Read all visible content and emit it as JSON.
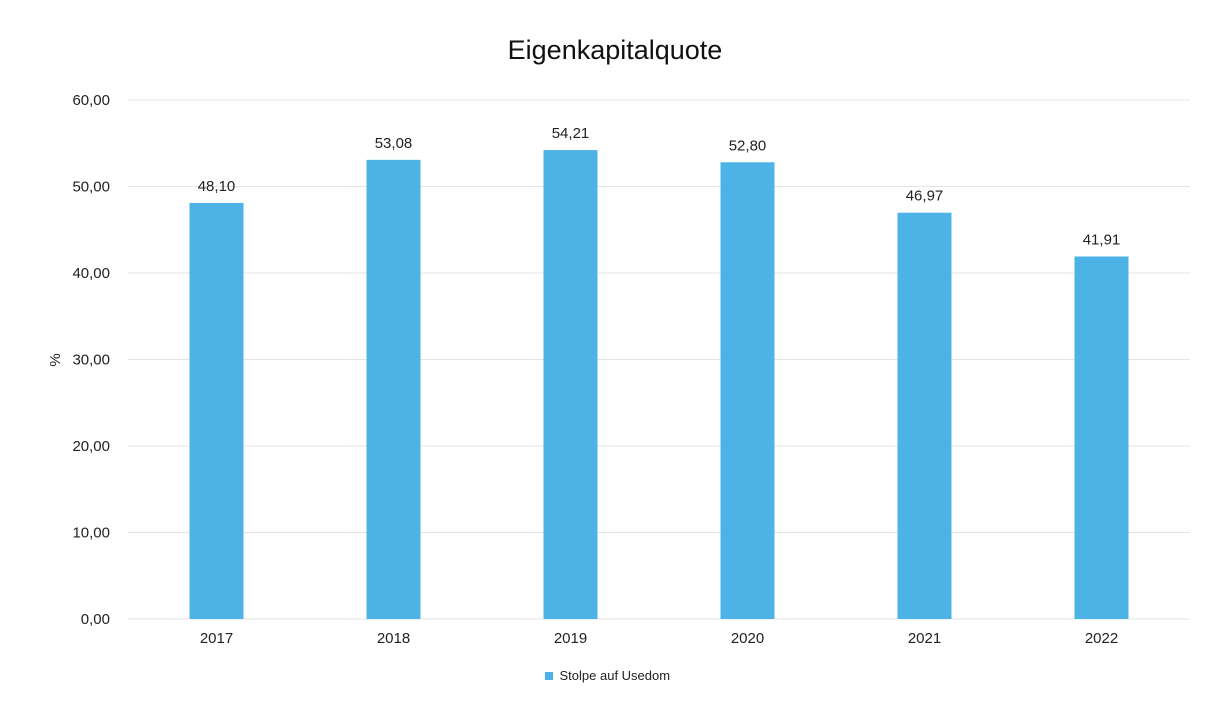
{
  "chart_data": {
    "type": "bar",
    "title": "Eigenkapitalquote",
    "xlabel": "",
    "ylabel": "%",
    "categories": [
      "2017",
      "2018",
      "2019",
      "2020",
      "2021",
      "2022"
    ],
    "series": [
      {
        "name": "Stolpe auf Usedom",
        "values": [
          48.1,
          53.08,
          54.21,
          52.8,
          46.97,
          41.91
        ]
      }
    ],
    "data_labels": [
      "48,10",
      "53,08",
      "54,21",
      "52,80",
      "46,97",
      "41,91"
    ],
    "ylim": [
      0,
      60
    ],
    "yticks": [
      0,
      10,
      20,
      30,
      40,
      50,
      60
    ],
    "ytick_labels": [
      "0,00",
      "10,00",
      "20,00",
      "30,00",
      "40,00",
      "50,00",
      "60,00"
    ],
    "grid": true,
    "legend_position": "bottom",
    "bar_color": "#4db3e6",
    "grid_color": "#e4e4e4",
    "text_color": "#222222"
  }
}
